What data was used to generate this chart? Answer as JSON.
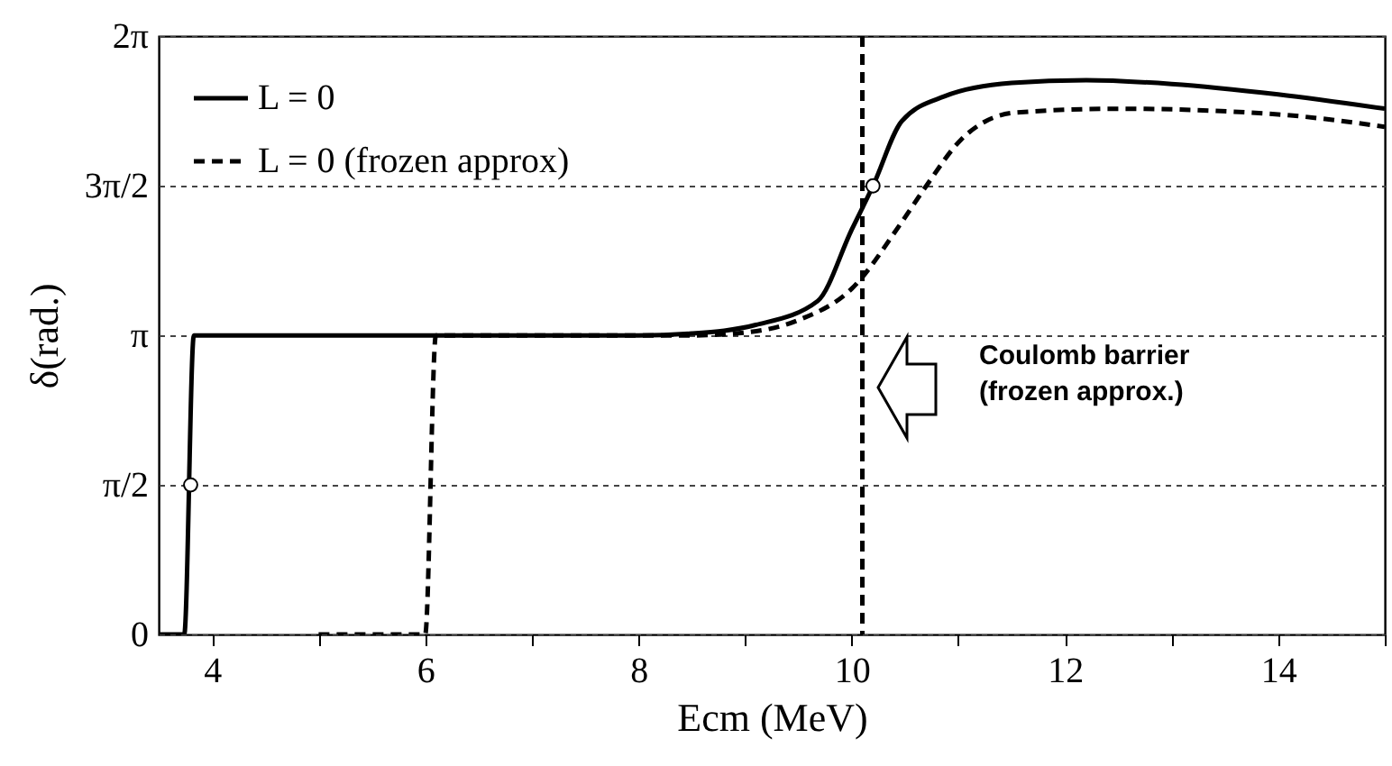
{
  "chart_data": {
    "type": "line",
    "xlabel": "Ecm (MeV)",
    "ylabel": "δ(rad.)",
    "xlim": [
      3.5,
      15
    ],
    "ylim": [
      0,
      6.283
    ],
    "xticks": [
      4,
      {
        "value": 5,
        "label": null
      },
      6,
      {
        "value": 7,
        "label": null
      },
      8,
      {
        "value": 9,
        "label": null
      },
      10,
      {
        "value": 11,
        "label": null
      },
      12,
      {
        "value": 13,
        "label": null
      },
      14,
      {
        "value": 15,
        "label": null
      }
    ],
    "yticks": [
      0,
      {
        "value": 1.571,
        "label": "π/2"
      },
      {
        "value": 3.142,
        "label": "π"
      },
      {
        "value": 4.712,
        "label": "3π/2"
      },
      {
        "value": 6.283,
        "label": "2π"
      }
    ],
    "grid": "y",
    "legend": "top left",
    "series": [
      {
        "name": "L = 0",
        "color": "#000000",
        "line_style": "solid",
        "x": [
          3.5,
          3.74,
          3.83,
          8,
          8.5,
          9.1,
          9.68,
          10,
          10.2,
          10.47,
          10.87,
          11.5,
          12.2,
          13,
          14,
          15
        ],
        "values": [
          0,
          0,
          3.14,
          3.14,
          3.16,
          3.25,
          3.5,
          4.25,
          4.71,
          5.39,
          5.65,
          5.79,
          5.82,
          5.78,
          5.67,
          5.52
        ]
      },
      {
        "name": "L = 0 (frozen approx)",
        "color": "#000000",
        "line_style": "dashed",
        "x": [
          5,
          6,
          6.1,
          8.5,
          9,
          9.5,
          10,
          10.47,
          10.7,
          11.03,
          11.54,
          12.5,
          14,
          15
        ],
        "values": [
          0,
          0,
          3.14,
          3.14,
          3.17,
          3.3,
          3.63,
          4.33,
          4.71,
          5.2,
          5.48,
          5.52,
          5.46,
          5.33
        ]
      },
      {
        "type": "scatter",
        "color": "#ffffff",
        "marker": "circle",
        "x": [
          3.8,
          10.2
        ],
        "values": [
          1.57,
          4.71
        ]
      }
    ],
    "ref_lines": [
      {
        "axis": "x",
        "value": 10.1,
        "line_style": "dashed",
        "color": "#000000"
      }
    ],
    "annotations": [
      "Coulomb barrier\n(frozen approx.)"
    ]
  }
}
